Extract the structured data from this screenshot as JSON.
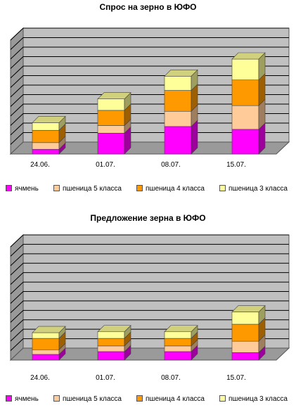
{
  "colors": {
    "wall": "#c0c0c0",
    "side_wall": "#999999",
    "floor": "#9a9a9a",
    "grid": "#000000",
    "barley": "#ff00ff",
    "wheat5": "#ffcc99",
    "wheat4": "#ff9900",
    "wheat3": "#ffff99"
  },
  "charts": [
    {
      "title": "Спрос на зерно в ЮФО",
      "categories": [
        "24.06.",
        "01.07.",
        "08.07.",
        "15.07."
      ],
      "legend": [
        "ячмень",
        "пшеница 5 класса",
        "пшеница 4 класса",
        "пшеница 3 класса"
      ]
    },
    {
      "title": "Предложение зерна в ЮФО",
      "categories": [
        "24.06.",
        "01.07.",
        "08.07.",
        "15.07."
      ],
      "legend": [
        "ячмень",
        "пшеница 5 класса",
        "пшеница 4 класса",
        "пшеница 3 класса"
      ]
    }
  ],
  "chart_data": [
    {
      "type": "bar",
      "stacked": true,
      "title": "Спрос на зерно в ЮФО",
      "categories": [
        "24.06.",
        "01.07.",
        "08.07.",
        "15.07."
      ],
      "ylim": [
        0,
        12
      ],
      "grid": true,
      "legend_position": "bottom",
      "series": [
        {
          "name": "ячмень",
          "color": "#ff00ff",
          "values": [
            0.5,
            2.2,
            2.9,
            2.6
          ]
        },
        {
          "name": "пшеница 5 класса",
          "color": "#ffcc99",
          "values": [
            0.7,
            0.8,
            1.6,
            2.5
          ]
        },
        {
          "name": "пшеница 4 класса",
          "color": "#ff9900",
          "values": [
            1.3,
            1.6,
            2.2,
            2.7
          ]
        },
        {
          "name": "пшеница 3 класса",
          "color": "#ffff99",
          "values": [
            0.8,
            1.2,
            1.5,
            2.2
          ]
        }
      ]
    },
    {
      "type": "bar",
      "stacked": true,
      "title": "Предложение зерна в ЮФО",
      "categories": [
        "24.06.",
        "01.07.",
        "08.07.",
        "15.07."
      ],
      "ylim": [
        0,
        12
      ],
      "grid": true,
      "legend_position": "bottom",
      "series": [
        {
          "name": "ячмень",
          "color": "#ff00ff",
          "values": [
            0.6,
            0.9,
            0.9,
            0.8
          ]
        },
        {
          "name": "пшеница 5 класса",
          "color": "#ffcc99",
          "values": [
            0.5,
            0.6,
            0.6,
            1.2
          ]
        },
        {
          "name": "пшеница 4 класса",
          "color": "#ff9900",
          "values": [
            1.2,
            0.8,
            0.8,
            1.8
          ]
        },
        {
          "name": "пшеница 3 класса",
          "color": "#ffff99",
          "values": [
            0.6,
            0.7,
            0.7,
            1.3
          ]
        }
      ]
    }
  ]
}
